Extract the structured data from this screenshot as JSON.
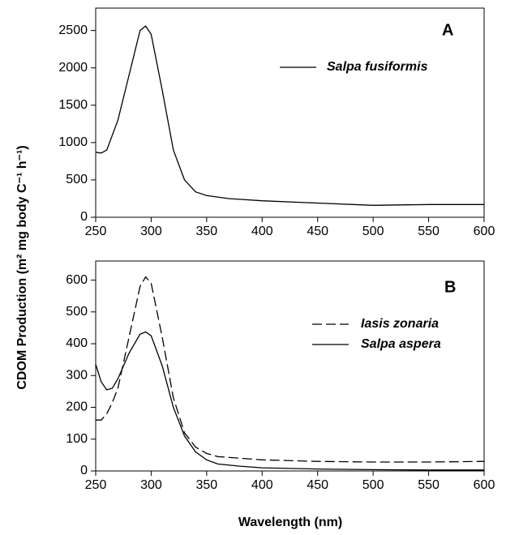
{
  "xlabel": "Wavelength (nm)",
  "ylabel": "CDOM Production (m² mg body C⁻¹ h⁻¹)",
  "chart_data": [
    {
      "type": "line",
      "annotation": "A",
      "x": [
        250,
        255,
        260,
        270,
        280,
        290,
        295,
        300,
        310,
        320,
        330,
        340,
        350,
        360,
        370,
        380,
        400,
        450,
        500,
        550,
        600
      ],
      "series": [
        {
          "name": "Salpa fusiformis",
          "color": "#000000",
          "dash": false,
          "values": [
            870,
            860,
            900,
            1300,
            1900,
            2500,
            2560,
            2450,
            1700,
            900,
            500,
            340,
            290,
            270,
            250,
            240,
            220,
            190,
            160,
            170,
            170
          ]
        }
      ],
      "xlim": [
        250,
        600
      ],
      "xticks": [
        250,
        300,
        350,
        400,
        450,
        500,
        550,
        600
      ],
      "ylim": [
        0,
        2800
      ],
      "yticks": [
        0,
        500,
        1000,
        1500,
        2000,
        2500
      ]
    },
    {
      "type": "line",
      "annotation": "B",
      "x": [
        250,
        255,
        260,
        265,
        270,
        280,
        290,
        295,
        300,
        310,
        320,
        330,
        340,
        350,
        360,
        380,
        400,
        450,
        500,
        550,
        600
      ],
      "series": [
        {
          "name": "Iasis zonaria",
          "color": "#000000",
          "dash": true,
          "values": [
            160,
            160,
            180,
            215,
            260,
            420,
            580,
            610,
            590,
            420,
            230,
            120,
            75,
            55,
            45,
            40,
            35,
            30,
            28,
            28,
            30
          ]
        },
        {
          "name": "Salpa aspera",
          "color": "#000000",
          "dash": false,
          "values": [
            335,
            280,
            255,
            260,
            290,
            370,
            430,
            437,
            425,
            330,
            200,
            110,
            60,
            35,
            22,
            15,
            10,
            6,
            4,
            3,
            3
          ]
        }
      ],
      "xlim": [
        250,
        600
      ],
      "xticks": [
        250,
        300,
        350,
        400,
        450,
        500,
        550,
        600
      ],
      "ylim": [
        0,
        660
      ],
      "yticks": [
        0,
        100,
        200,
        300,
        400,
        500,
        600
      ]
    }
  ]
}
